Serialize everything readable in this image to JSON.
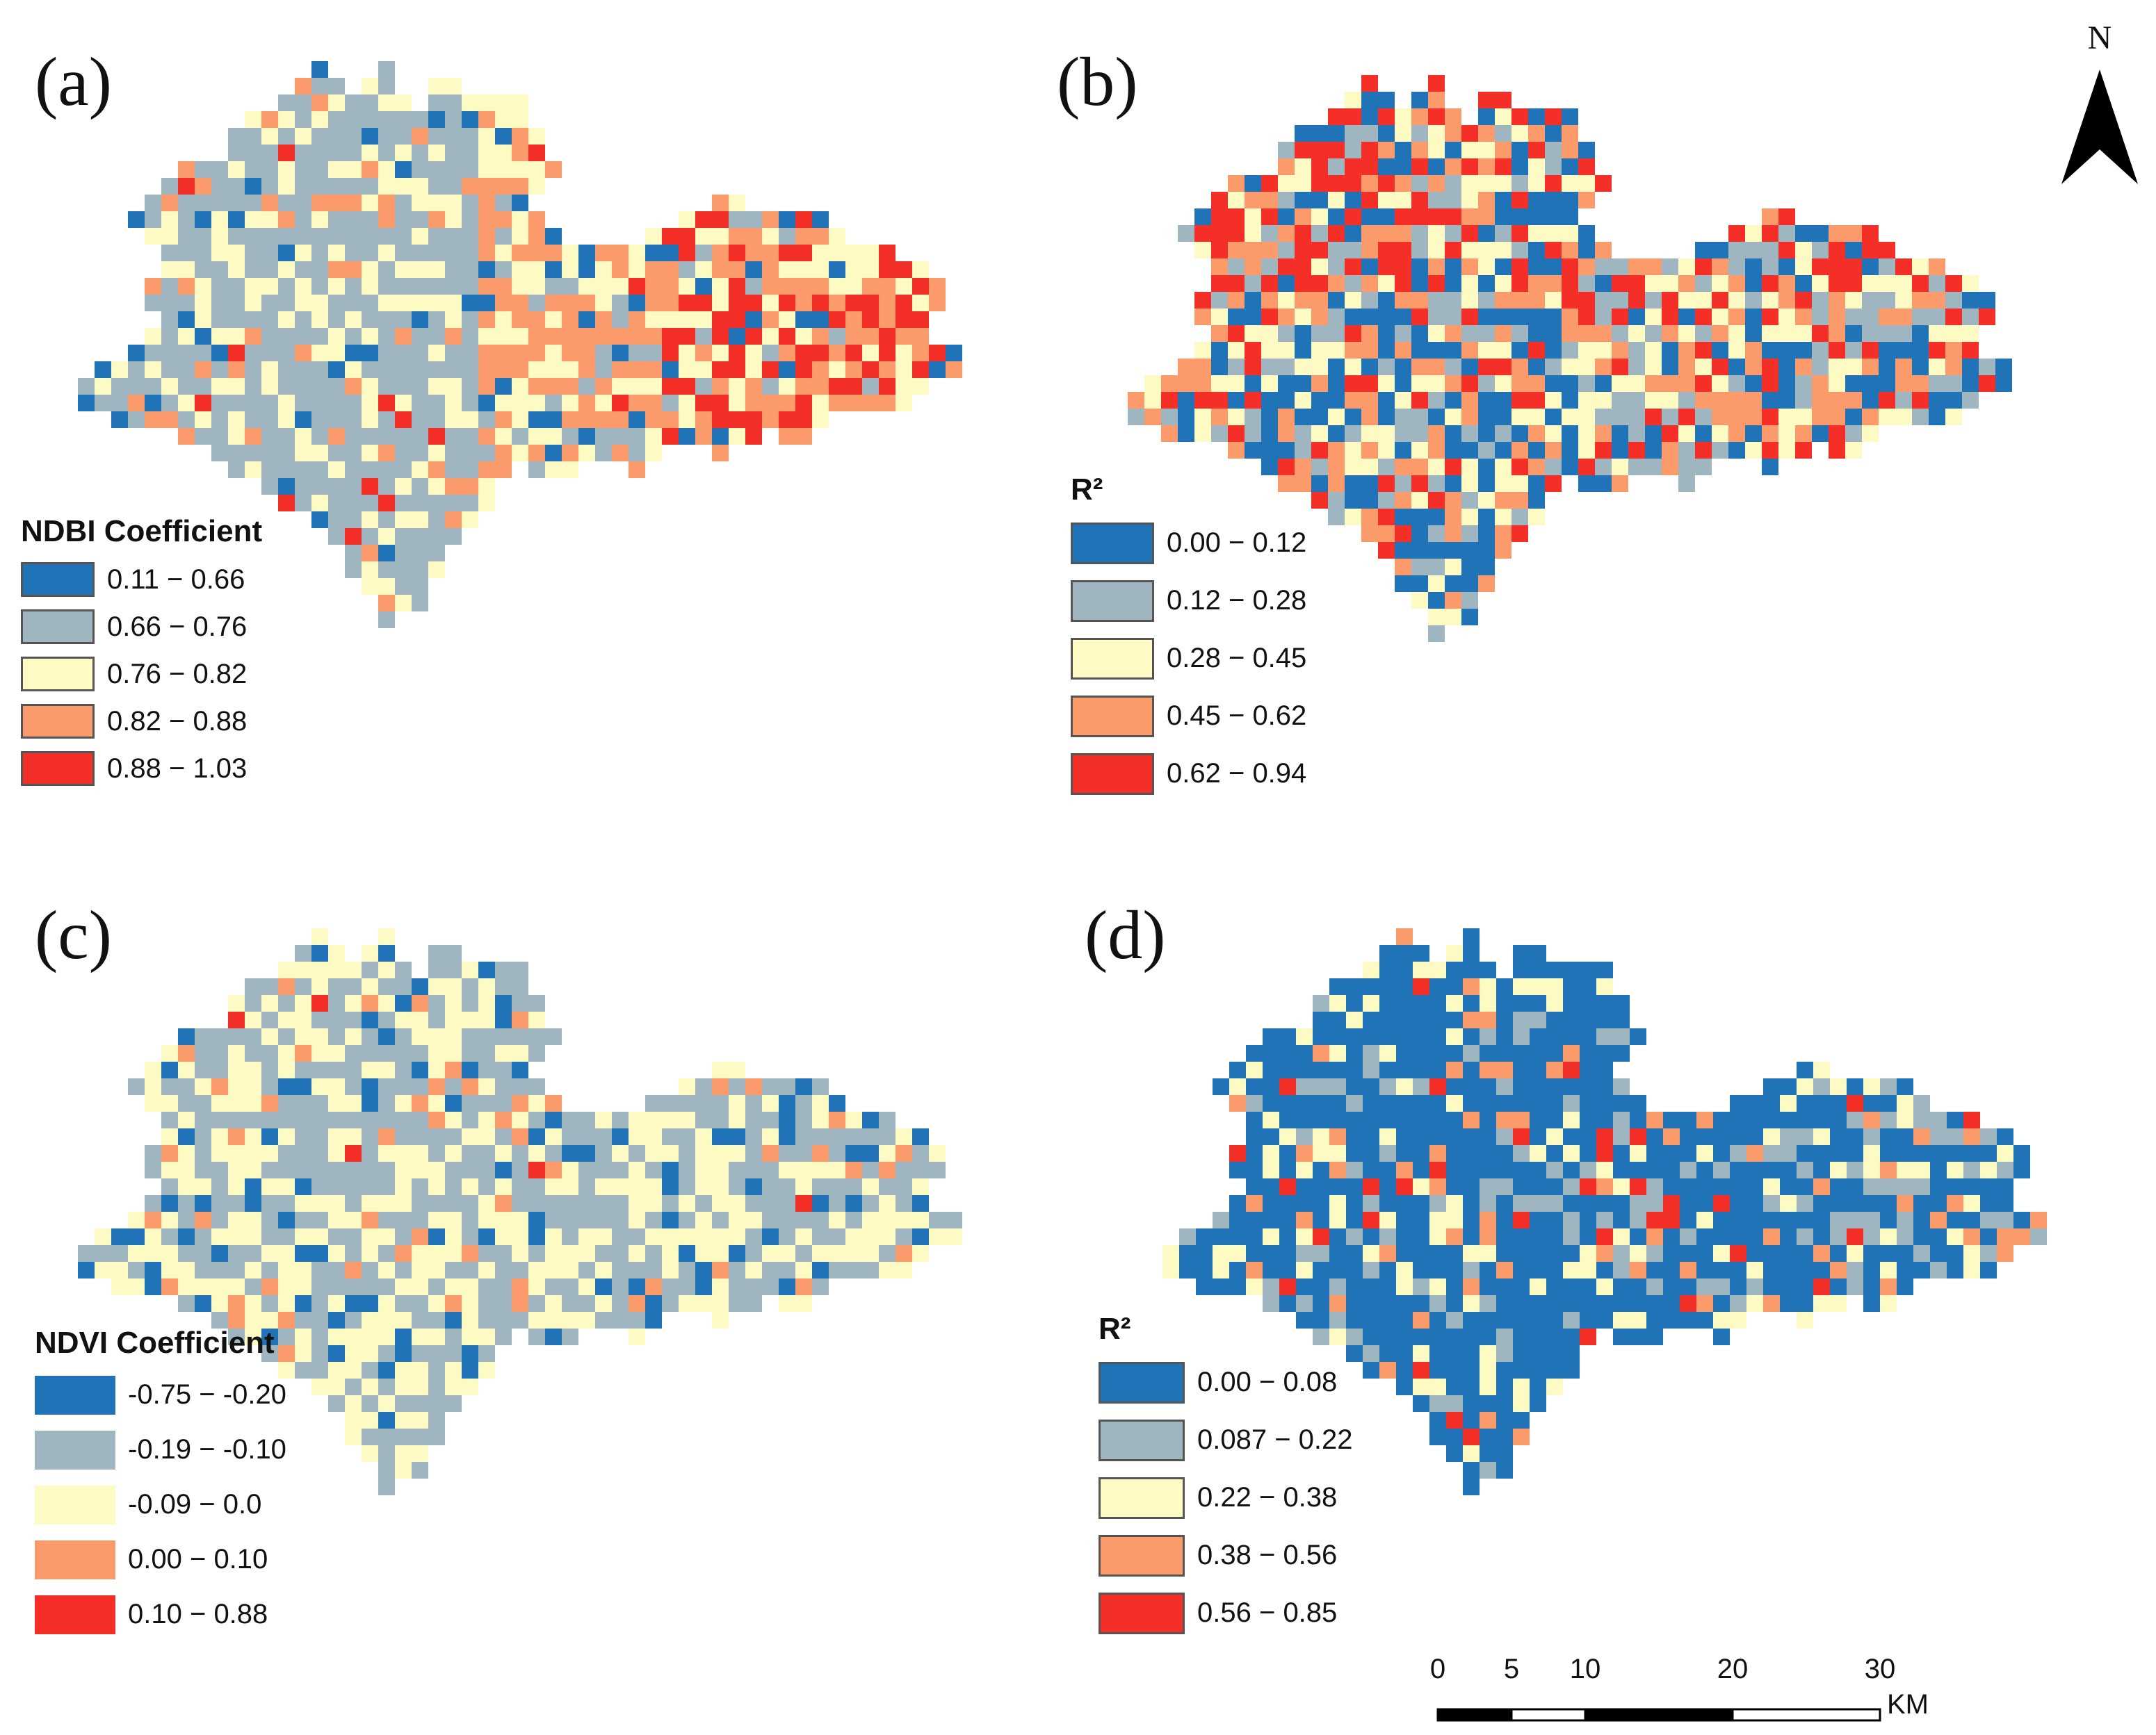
{
  "panels": [
    {
      "id": "a",
      "label": "(a)",
      "seed": 11,
      "legend": {
        "title": "NDBI Coefficient",
        "items": [
          {
            "label": "0.11 − 0.66",
            "color": "#2173b8"
          },
          {
            "label": "0.66 − 0.76",
            "color": "#9fb6c1"
          },
          {
            "label": "0.76 − 0.82",
            "color": "#fdfbc3"
          },
          {
            "label": "0.82 − 0.88",
            "color": "#fb9a6a"
          },
          {
            "label": "0.88 − 1.03",
            "color": "#f42f28"
          }
        ]
      }
    },
    {
      "id": "b",
      "label": "(b)",
      "seed": 23,
      "legend": {
        "title": "R²",
        "items": [
          {
            "label": "0.00 − 0.12",
            "color": "#2173b8"
          },
          {
            "label": "0.12 − 0.28",
            "color": "#9fb6c1"
          },
          {
            "label": "0.28 − 0.45",
            "color": "#fdfbc3"
          },
          {
            "label": "0.45 − 0.62",
            "color": "#fb9a6a"
          },
          {
            "label": "0.62 − 0.94",
            "color": "#f42f28"
          }
        ]
      }
    },
    {
      "id": "c",
      "label": "(c)",
      "seed": 37,
      "legend": {
        "title": "NDVI Coefficient",
        "items": [
          {
            "label": "-0.75 − -0.20",
            "color": "#2173b8"
          },
          {
            "label": "-0.19 − -0.10",
            "color": "#9fb6c1"
          },
          {
            "label": "-0.09 − 0.0",
            "color": "#fdfbc3"
          },
          {
            "label": "0.00 − 0.10",
            "color": "#fb9a6a"
          },
          {
            "label": "0.10 − 0.88",
            "color": "#f42f28"
          }
        ]
      }
    },
    {
      "id": "d",
      "label": "(d)",
      "seed": 53,
      "legend": {
        "title": "R²",
        "items": [
          {
            "label": "0.00 − 0.08",
            "color": "#2173b8"
          },
          {
            "label": "0.087 − 0.22",
            "color": "#9fb6c1"
          },
          {
            "label": "0.22 − 0.38",
            "color": "#fdfbc3"
          },
          {
            "label": "0.38 − 0.56",
            "color": "#fb9a6a"
          },
          {
            "label": "0.56 − 0.85",
            "color": "#f42f28"
          }
        ]
      }
    }
  ],
  "north_arrow": {
    "label": "N"
  },
  "scale_bar": {
    "ticks": [
      "0",
      "5",
      "10",
      "20",
      "30"
    ],
    "unit": "KM"
  }
}
